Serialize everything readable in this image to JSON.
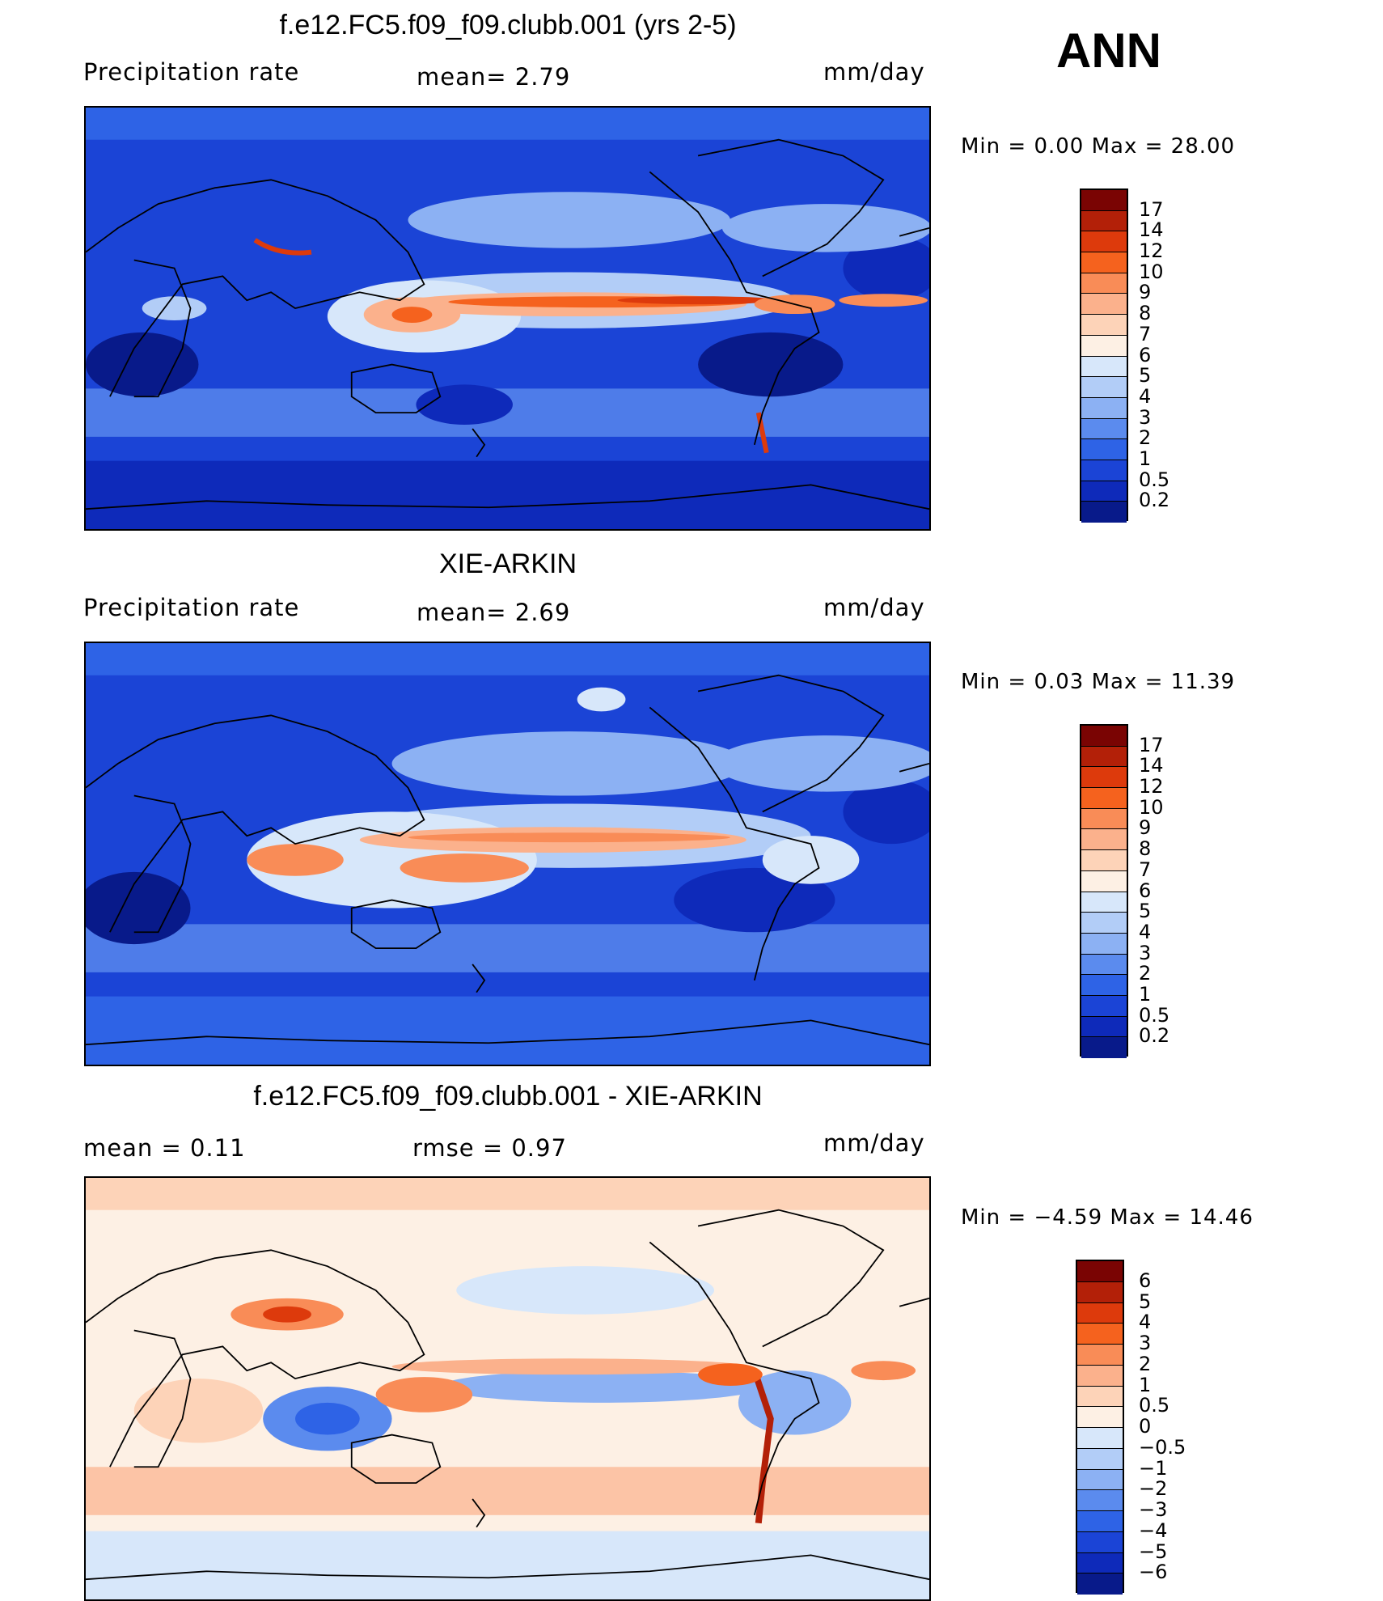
{
  "season": "ANN",
  "panels": [
    {
      "id": "model",
      "title": "f.e12.FC5.f09_f09.clubb.001 (yrs 2-5)",
      "left_label": "Precipitation  rate",
      "mid_label": "mean=    2.79",
      "right_label": "mm/day",
      "minmax": "Min  =     0.00  Max  =    28.00",
      "levels": [
        "17",
        "14",
        "12",
        "10",
        "9",
        "8",
        "7",
        "6",
        "5",
        "4",
        "3",
        "2",
        "1",
        "0.5",
        "0.2"
      ],
      "colors": [
        "#7a0403",
        "#b32008",
        "#dd3a0c",
        "#f5621e",
        "#f98c57",
        "#fbb18c",
        "#fdd3b8",
        "#fdf0e4",
        "#d7e7fa",
        "#b2cdf7",
        "#8cb1f3",
        "#5b8bee",
        "#2e63e6",
        "#1b44d6",
        "#0e2aba",
        "#081a8a"
      ]
    },
    {
      "id": "obs",
      "title": "XIE-ARKIN",
      "left_label": "Precipitation  rate",
      "mid_label": "mean=    2.69",
      "right_label": "mm/day",
      "minmax": "Min  =     0.03  Max  =    11.39",
      "levels": [
        "17",
        "14",
        "12",
        "10",
        "9",
        "8",
        "7",
        "6",
        "5",
        "4",
        "3",
        "2",
        "1",
        "0.5",
        "0.2"
      ],
      "colors": [
        "#7a0403",
        "#b32008",
        "#dd3a0c",
        "#f5621e",
        "#f98c57",
        "#fbb18c",
        "#fdd3b8",
        "#fdf0e4",
        "#d7e7fa",
        "#b2cdf7",
        "#8cb1f3",
        "#5b8bee",
        "#2e63e6",
        "#1b44d6",
        "#0e2aba",
        "#081a8a"
      ]
    },
    {
      "id": "diff",
      "title": "f.e12.FC5.f09_f09.clubb.001 - XIE-ARKIN",
      "left_label": "mean  =      0.11",
      "mid_label": "rmse  =      0.97",
      "right_label": "mm/day",
      "minmax": "Min  =    −4.59  Max  =    14.46",
      "levels": [
        "6",
        "5",
        "4",
        "3",
        "2",
        "1",
        "0.5",
        "0",
        "−0.5",
        "−1",
        "−2",
        "−3",
        "−4",
        "−5",
        "−6"
      ],
      "colors": [
        "#7a0403",
        "#b32008",
        "#dd3a0c",
        "#f5621e",
        "#f98c57",
        "#fbb18c",
        "#fdd3b8",
        "#fdf0e4",
        "#d7e7fa",
        "#b2cdf7",
        "#8cb1f3",
        "#5b8bee",
        "#2e63e6",
        "#1b44d6",
        "#0e2aba",
        "#081a8a"
      ]
    }
  ]
}
